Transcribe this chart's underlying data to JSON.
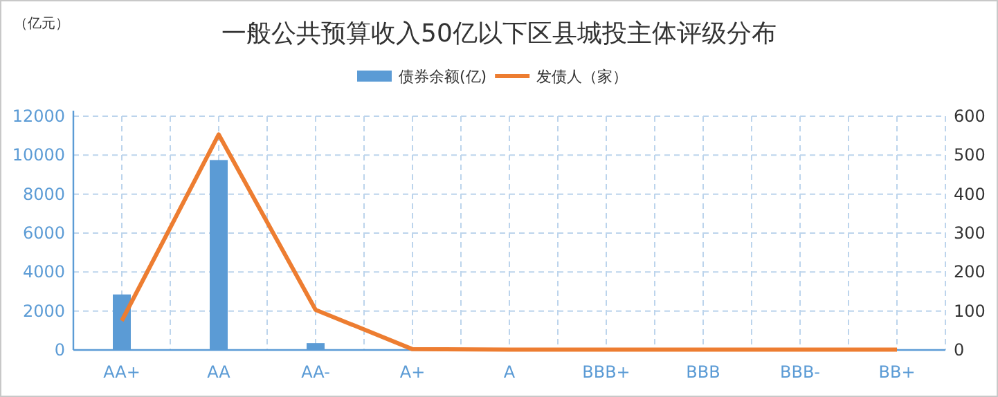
{
  "chart_data": {
    "type": "bar",
    "title": "一般公共预算收入50亿以下区县城投主体评级分布",
    "annotations": [
      "（亿元）"
    ],
    "categories": [
      "AA+",
      "AA",
      "AA-",
      "A+",
      "A",
      "BBB+",
      "BBB",
      "BBB-",
      "BB+"
    ],
    "series": [
      {
        "name": "债券余额(亿)",
        "color": "#5b9bd5",
        "values": [
          2850,
          9750,
          350,
          0,
          0,
          0,
          0,
          0,
          0
        ]
      },
      {
        "name": "发债人（家）",
        "type": "line",
        "axis": "y2",
        "color": "#ed7d31",
        "values": [
          75,
          553,
          103,
          2,
          1,
          1,
          1,
          1,
          1
        ]
      }
    ],
    "ylim": [
      0,
      12000
    ],
    "yticks": [
      0,
      2000,
      4000,
      6000,
      8000,
      10000,
      12000
    ],
    "y2lim": [
      0,
      600
    ],
    "y2ticks": [
      0,
      100,
      200,
      300,
      400,
      500,
      600
    ],
    "grid": true,
    "legend": "top"
  }
}
